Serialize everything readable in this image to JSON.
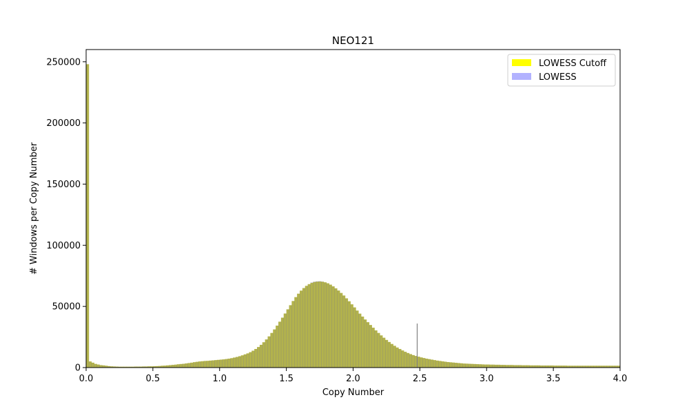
{
  "chart_data": {
    "type": "bar",
    "subtype": "histogram-overlay",
    "title": "NEO121",
    "xlabel": "Copy Number",
    "ylabel": "# Windows per Copy Number",
    "xlim": [
      0,
      4
    ],
    "ylim": [
      0,
      260000
    ],
    "bin_width": 0.02,
    "x_ticks": [
      0,
      0.5,
      1,
      1.5,
      2,
      2.5,
      3,
      3.5,
      4
    ],
    "x_tick_labels": [
      "0.0",
      "0.5",
      "1.0",
      "1.5",
      "2.0",
      "2.5",
      "3.0",
      "3.5",
      "4.0"
    ],
    "y_ticks": [
      0,
      50000,
      100000,
      150000,
      200000,
      250000
    ],
    "y_tick_labels": [
      "0",
      "50000",
      "100000",
      "150000",
      "200000",
      "250000"
    ],
    "grid": false,
    "legend_position": "top-right",
    "bin_starts": [
      0,
      0.02,
      0.04,
      0.06,
      0.08,
      0.1,
      0.12,
      0.14,
      0.16,
      0.18,
      0.2,
      0.22,
      0.24,
      0.26,
      0.28,
      0.3,
      0.32,
      0.34,
      0.36,
      0.38,
      0.4,
      0.42,
      0.44,
      0.46,
      0.48,
      0.5,
      0.52,
      0.54,
      0.56,
      0.58,
      0.6,
      0.62,
      0.64,
      0.66,
      0.68,
      0.7,
      0.72,
      0.74,
      0.76,
      0.78,
      0.8,
      0.82,
      0.84,
      0.86,
      0.88,
      0.9,
      0.92,
      0.94,
      0.96,
      0.98,
      1.0,
      1.02,
      1.04,
      1.06,
      1.08,
      1.1,
      1.12,
      1.14,
      1.16,
      1.18,
      1.2,
      1.22,
      1.24,
      1.26,
      1.28,
      1.3,
      1.32,
      1.34,
      1.36,
      1.38,
      1.4,
      1.42,
      1.44,
      1.46,
      1.48,
      1.5,
      1.52,
      1.54,
      1.56,
      1.58,
      1.6,
      1.62,
      1.64,
      1.66,
      1.68,
      1.7,
      1.72,
      1.74,
      1.76,
      1.78,
      1.8,
      1.82,
      1.84,
      1.86,
      1.88,
      1.9,
      1.92,
      1.94,
      1.96,
      1.98,
      2.0,
      2.02,
      2.04,
      2.06,
      2.08,
      2.1,
      2.12,
      2.14,
      2.16,
      2.18,
      2.2,
      2.22,
      2.24,
      2.26,
      2.28,
      2.3,
      2.32,
      2.34,
      2.36,
      2.38,
      2.4,
      2.42,
      2.44,
      2.46,
      2.48,
      2.5,
      2.52,
      2.54,
      2.56,
      2.58,
      2.6,
      2.62,
      2.64,
      2.66,
      2.68,
      2.7,
      2.72,
      2.74,
      2.76,
      2.78,
      2.8,
      2.82,
      2.84,
      2.86,
      2.88,
      2.9,
      2.92,
      2.94,
      2.96,
      2.98,
      3.0,
      3.02,
      3.04,
      3.06,
      3.08,
      3.1,
      3.12,
      3.14,
      3.16,
      3.18,
      3.2,
      3.22,
      3.24,
      3.26,
      3.28,
      3.3,
      3.32,
      3.34,
      3.36,
      3.38,
      3.4,
      3.42,
      3.44,
      3.46,
      3.48,
      3.5,
      3.52,
      3.54,
      3.56,
      3.58,
      3.6,
      3.62,
      3.64,
      3.66,
      3.68,
      3.7,
      3.72,
      3.74,
      3.76,
      3.78,
      3.8,
      3.82,
      3.84,
      3.86,
      3.88,
      3.9,
      3.92,
      3.94,
      3.96,
      3.98
    ],
    "series": [
      {
        "name": "LOWESS Cutoff",
        "color": "#ffff00",
        "opacity": 1.0,
        "values": [
          248000,
          5000,
          4000,
          3000,
          2500,
          2000,
          1800,
          1500,
          1200,
          1000,
          900,
          800,
          700,
          700,
          700,
          700,
          700,
          700,
          800,
          800,
          800,
          900,
          900,
          1000,
          1000,
          1100,
          1200,
          1300,
          1500,
          1600,
          1800,
          2000,
          2200,
          2400,
          2700,
          2900,
          3100,
          3400,
          3700,
          4000,
          4400,
          4700,
          5000,
          5200,
          5400,
          5500,
          5700,
          5900,
          6100,
          6300,
          6500,
          6700,
          7000,
          7300,
          7700,
          8200,
          8700,
          9300,
          10000,
          10800,
          11600,
          12600,
          13800,
          15200,
          16800,
          18600,
          20700,
          23000,
          25500,
          28300,
          31200,
          34300,
          37500,
          40800,
          44200,
          47600,
          51000,
          54400,
          57600,
          60400,
          62900,
          65000,
          66800,
          68200,
          69300,
          70000,
          70300,
          70400,
          70200,
          69700,
          68900,
          67800,
          66400,
          64800,
          63000,
          61000,
          58900,
          56600,
          54200,
          51700,
          49200,
          46600,
          44100,
          41700,
          39300,
          37100,
          34800,
          32600,
          30400,
          28300,
          26300,
          24400,
          22600,
          20900,
          19300,
          17800,
          16400,
          15200,
          14000,
          12900,
          11900,
          11000,
          10200,
          9500,
          8900,
          8300,
          7800,
          7300,
          6900,
          6500,
          6100,
          5700,
          5400,
          5100,
          4800,
          4500,
          4300,
          4100,
          3900,
          3700,
          3500,
          3300,
          3200,
          3100,
          3000,
          2900,
          2800,
          2700,
          2600,
          2500,
          2500,
          2400,
          2400,
          2300,
          2300,
          2200,
          2200,
          2100,
          2100,
          2100,
          2000,
          2000,
          2000,
          1900,
          1900,
          1900,
          1800,
          1800,
          1800,
          1800,
          1700,
          1700,
          1700,
          1700,
          1700,
          1600,
          1600,
          1600,
          1600,
          1600,
          1500,
          1500,
          1500,
          1500,
          1500,
          1500,
          1500,
          1500,
          1500,
          1500,
          1500,
          1500,
          1500,
          1500,
          1500,
          1500,
          1500,
          1500,
          1500,
          1500,
          1500,
          1500,
          1500
        ]
      },
      {
        "name": "LOWESS",
        "color": "#0000ff",
        "opacity": 0.3,
        "values": [
          248000,
          5000,
          4000,
          3000,
          2500,
          2000,
          1800,
          1500,
          1200,
          1000,
          900,
          800,
          700,
          700,
          700,
          700,
          700,
          700,
          800,
          800,
          800,
          900,
          900,
          1000,
          1000,
          1100,
          1200,
          1300,
          1500,
          1600,
          1800,
          2000,
          2200,
          2400,
          2700,
          2900,
          3100,
          3400,
          3700,
          4000,
          4400,
          4700,
          5000,
          5200,
          5400,
          5500,
          5700,
          5900,
          6100,
          6300,
          6500,
          6700,
          7000,
          7300,
          7700,
          8200,
          8700,
          9300,
          10000,
          10800,
          11600,
          12600,
          13800,
          15200,
          16800,
          18600,
          20700,
          23000,
          25500,
          28300,
          31200,
          34300,
          37500,
          40800,
          44200,
          47600,
          51000,
          54400,
          57600,
          60400,
          62900,
          65000,
          66800,
          68200,
          69500,
          70200,
          70500,
          70600,
          70300,
          69700,
          68900,
          67800,
          66400,
          64800,
          63000,
          61000,
          58900,
          56600,
          54200,
          51700,
          49200,
          46600,
          44100,
          41700,
          39300,
          37100,
          34800,
          32600,
          30400,
          28300,
          26300,
          24400,
          22600,
          20900,
          19300,
          17800,
          16400,
          15200,
          14000,
          12900,
          11900,
          11000,
          10200,
          9500,
          8900,
          8300,
          7800,
          7300,
          6900,
          6500,
          6100,
          5700,
          5400,
          5100,
          4800,
          4500,
          4300,
          4100,
          3900,
          3700,
          3500,
          3300,
          3200,
          3100,
          3000,
          2900,
          2800,
          2700,
          2600,
          2500,
          2500,
          2400,
          2400,
          2300,
          2300,
          2200,
          2200,
          2100,
          2100,
          2100,
          2000,
          2000,
          2000,
          1900,
          1900,
          1900,
          1800,
          1800,
          1800,
          1800,
          1700,
          1700,
          1700,
          1700,
          1700,
          1600,
          1600,
          1600,
          1600,
          1600,
          1500,
          1500,
          1500,
          1500,
          1500,
          1500,
          1500,
          1500,
          1500,
          1500,
          1500,
          1500,
          1500,
          1500,
          1500,
          1500,
          1500,
          1500,
          1500,
          1500,
          1500,
          1500,
          1500
        ]
      }
    ],
    "annotations": [
      {
        "type": "vertical-line",
        "x": 2.48,
        "y_from": 0,
        "y_to": 36000,
        "color": "#808080"
      }
    ]
  }
}
